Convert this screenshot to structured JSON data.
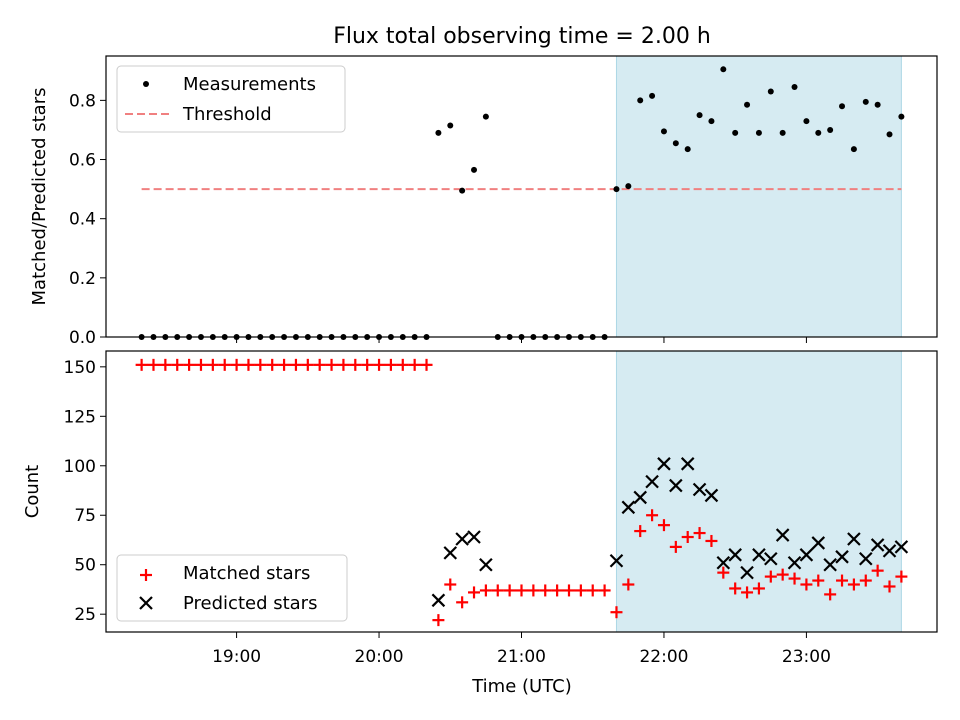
{
  "title": "Flux total observing time = 2.00 h",
  "chart_data": [
    {
      "type": "scatter",
      "ylabel": "Matched/Predicted stars",
      "xlabel": "",
      "ylim": [
        0,
        0.95
      ],
      "yticks": [
        0.0,
        0.2,
        0.4,
        0.6,
        0.8
      ],
      "ytick_labels": [
        "0.0",
        "0.2",
        "0.4",
        "0.6",
        "0.8"
      ],
      "legend_position": "top-left",
      "threshold": {
        "name": "Threshold",
        "value": 0.5,
        "x_start": "18:20",
        "x_end": "23:40",
        "color": "#f08080",
        "style": "dashed"
      },
      "shaded_region": {
        "x_start": "21:40",
        "x_end": "23:40",
        "color": "#add8e6"
      },
      "series": [
        {
          "name": "Measurements",
          "color": "#000000",
          "marker": "dot",
          "x": [
            "18:20",
            "18:25",
            "18:30",
            "18:35",
            "18:40",
            "18:45",
            "18:50",
            "18:55",
            "19:00",
            "19:05",
            "19:10",
            "19:15",
            "19:20",
            "19:25",
            "19:30",
            "19:35",
            "19:40",
            "19:45",
            "19:50",
            "19:55",
            "20:00",
            "20:05",
            "20:10",
            "20:15",
            "20:20",
            "20:25",
            "20:30",
            "20:35",
            "20:40",
            "20:45",
            "20:50",
            "20:55",
            "21:00",
            "21:05",
            "21:10",
            "21:15",
            "21:20",
            "21:25",
            "21:30",
            "21:35",
            "21:40",
            "21:45",
            "21:50",
            "21:55",
            "22:00",
            "22:05",
            "22:10",
            "22:15",
            "22:20",
            "22:25",
            "22:30",
            "22:35",
            "22:40",
            "22:45",
            "22:50",
            "22:55",
            "23:00",
            "23:05",
            "23:10",
            "23:15",
            "23:20",
            "23:25",
            "23:30",
            "23:35",
            "23:40"
          ],
          "y": [
            0,
            0,
            0,
            0,
            0,
            0,
            0,
            0,
            0,
            0,
            0,
            0,
            0,
            0,
            0,
            0,
            0,
            0,
            0,
            0,
            0,
            0,
            0,
            0,
            0,
            0.69,
            0.715,
            0.495,
            0.565,
            0.745,
            0,
            0,
            0,
            0,
            0,
            0,
            0,
            0,
            0,
            0,
            0.5,
            0.51,
            0.8,
            0.815,
            0.695,
            0.655,
            0.635,
            0.75,
            0.73,
            0.905,
            0.69,
            0.785,
            0.69,
            0.83,
            0.69,
            0.845,
            0.73,
            0.69,
            0.7,
            0.78,
            0.635,
            0.795,
            0.785,
            0.685,
            0.745
          ]
        }
      ]
    },
    {
      "type": "scatter",
      "ylabel": "Count",
      "xlabel": "Time (UTC)",
      "ylim": [
        16,
        158
      ],
      "yticks": [
        25,
        50,
        75,
        100,
        125,
        150
      ],
      "ytick_labels": [
        "25",
        "50",
        "75",
        "100",
        "125",
        "150"
      ],
      "x_range": [
        "18:05",
        "23:55"
      ],
      "xticks": [
        "19:00",
        "20:00",
        "21:00",
        "22:00",
        "23:00"
      ],
      "xtick_labels": [
        "19:00",
        "20:00",
        "21:00",
        "22:00",
        "23:00"
      ],
      "legend_position": "bottom-left",
      "shaded_region": {
        "x_start": "21:40",
        "x_end": "23:40",
        "color": "#add8e6"
      },
      "series": [
        {
          "name": "Matched stars",
          "color": "#ff0000",
          "marker": "plus",
          "x": [
            "18:20",
            "18:25",
            "18:30",
            "18:35",
            "18:40",
            "18:45",
            "18:50",
            "18:55",
            "19:00",
            "19:05",
            "19:10",
            "19:15",
            "19:20",
            "19:25",
            "19:30",
            "19:35",
            "19:40",
            "19:45",
            "19:50",
            "19:55",
            "20:00",
            "20:05",
            "20:10",
            "20:15",
            "20:20",
            "20:25",
            "20:30",
            "20:35",
            "20:40",
            "20:45",
            "20:50",
            "20:55",
            "21:00",
            "21:05",
            "21:10",
            "21:15",
            "21:20",
            "21:25",
            "21:30",
            "21:35",
            "21:40",
            "21:45",
            "21:50",
            "21:55",
            "22:00",
            "22:05",
            "22:10",
            "22:15",
            "22:20",
            "22:25",
            "22:30",
            "22:35",
            "22:40",
            "22:45",
            "22:50",
            "22:55",
            "23:00",
            "23:05",
            "23:10",
            "23:15",
            "23:20",
            "23:25",
            "23:30",
            "23:35",
            "23:40"
          ],
          "y": [
            151,
            151,
            151,
            151,
            151,
            151,
            151,
            151,
            151,
            151,
            151,
            151,
            151,
            151,
            151,
            151,
            151,
            151,
            151,
            151,
            151,
            151,
            151,
            151,
            151,
            22,
            40,
            31,
            36,
            37,
            37,
            37,
            37,
            37,
            37,
            37,
            37,
            37,
            37,
            37,
            26,
            40,
            67,
            75,
            70,
            59,
            64,
            66,
            62,
            46,
            38,
            36,
            38,
            44,
            45,
            43,
            40,
            42,
            35,
            42,
            40,
            42,
            47,
            39,
            44
          ]
        },
        {
          "name": "Predicted stars",
          "color": "#000000",
          "marker": "x",
          "x": [
            "20:25",
            "20:30",
            "20:35",
            "20:40",
            "20:45",
            "21:40",
            "21:45",
            "21:50",
            "21:55",
            "22:00",
            "22:05",
            "22:10",
            "22:15",
            "22:20",
            "22:25",
            "22:30",
            "22:35",
            "22:40",
            "22:45",
            "22:50",
            "22:55",
            "23:00",
            "23:05",
            "23:10",
            "23:15",
            "23:20",
            "23:25",
            "23:30",
            "23:35",
            "23:40"
          ],
          "y": [
            32,
            56,
            63,
            64,
            50,
            52,
            79,
            84,
            92,
            101,
            90,
            101,
            88,
            85,
            51,
            55,
            46,
            55,
            53,
            65,
            51,
            55,
            61,
            50,
            54,
            63,
            53,
            60,
            57,
            59
          ]
        }
      ]
    }
  ]
}
